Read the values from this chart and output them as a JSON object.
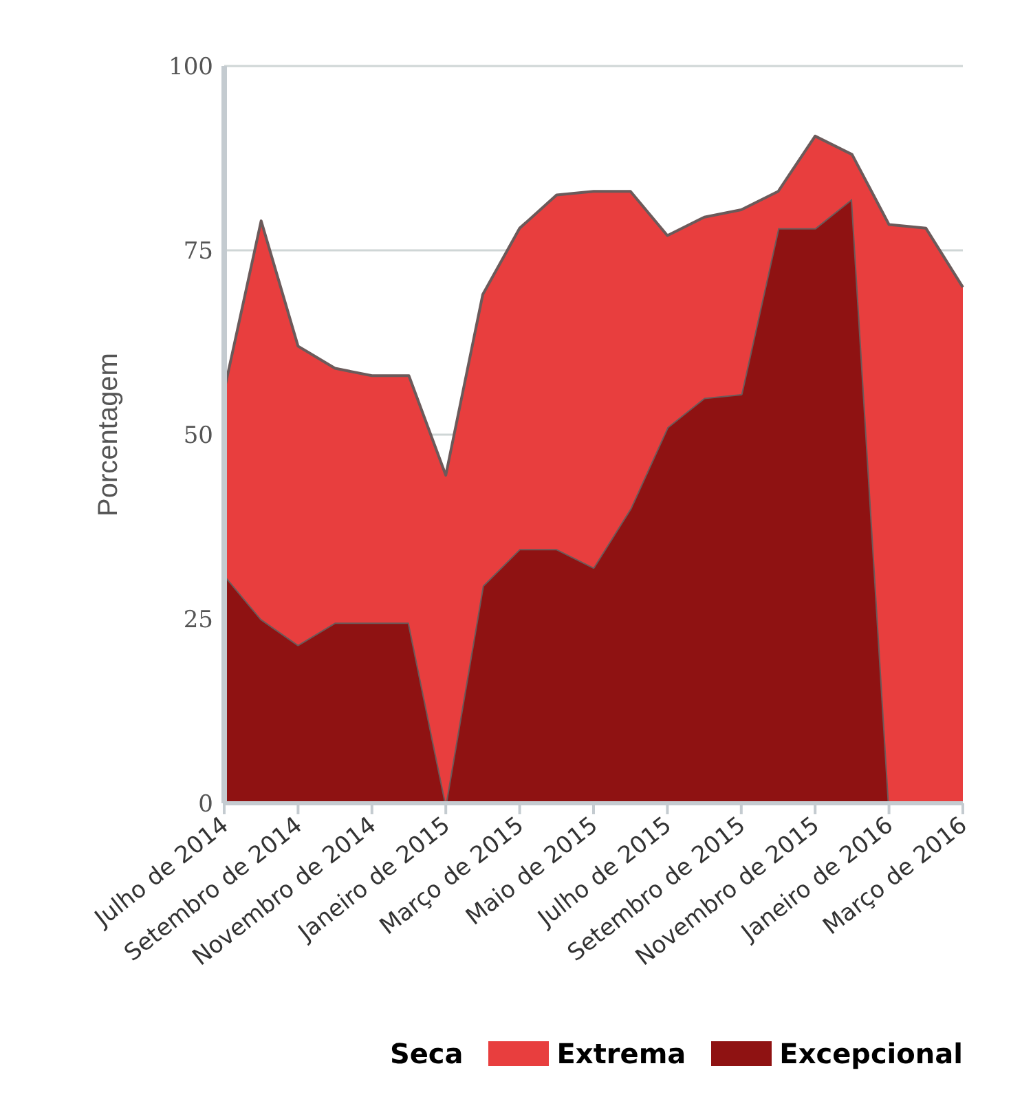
{
  "chart_data": {
    "type": "area",
    "stacked": true,
    "ylabel": "Porcentagem",
    "legend_title": "Seca",
    "categories": [
      "Julho de 2014",
      null,
      "Setembro de 2014",
      null,
      "Novembro de 2014",
      null,
      "Janeiro de 2015",
      null,
      "Março de 2015",
      null,
      "Maio de 2015",
      null,
      "Julho de 2015",
      null,
      "Setembro de 2015",
      null,
      "Novembro de 2015",
      null,
      "Janeiro de 2016",
      null,
      "Março de 2016"
    ],
    "series": [
      {
        "name": "Excepcional",
        "color": "#8f1212",
        "values": [
          31,
          25,
          21.5,
          24.5,
          24.5,
          24.5,
          0,
          29.5,
          34.5,
          34.5,
          32,
          40,
          51,
          55,
          55.5,
          78,
          78,
          82,
          0,
          0,
          0
        ]
      },
      {
        "name": "Extrema",
        "color": "#e83e3e",
        "values": [
          25,
          54,
          40.5,
          34.5,
          33.5,
          33.5,
          44.5,
          39.5,
          43.5,
          48,
          51,
          43,
          26,
          24.5,
          25,
          5,
          12.5,
          6,
          78.5,
          78,
          70
        ]
      }
    ],
    "ylim": [
      0,
      100
    ],
    "yticks": [
      0,
      25,
      50,
      75,
      100
    ],
    "grid": "y",
    "legend": "bottom"
  }
}
